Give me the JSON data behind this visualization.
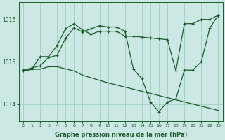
{
  "xlabel": "Graphe pression niveau de la mer (hPa)",
  "background_color": "#cce8e4",
  "grid_color": "#99ccbb",
  "line_color": "#1a5c2a",
  "xlim": [
    -0.5,
    23.5
  ],
  "ylim": [
    1013.6,
    1016.4
  ],
  "yticks": [
    1014,
    1015,
    1016
  ],
  "xticks": [
    0,
    1,
    2,
    3,
    4,
    5,
    6,
    7,
    8,
    9,
    10,
    11,
    12,
    13,
    14,
    15,
    16,
    17,
    18,
    19,
    20,
    21,
    22,
    23
  ],
  "line1_x": [
    0,
    1,
    2,
    3,
    4,
    5,
    6,
    7,
    8,
    9,
    10,
    11,
    12,
    13,
    14,
    15,
    16,
    17,
    18,
    19,
    20,
    21,
    22,
    23
  ],
  "line1_y": [
    1014.8,
    1014.85,
    1014.9,
    1015.1,
    1015.15,
    1015.55,
    1015.8,
    1015.7,
    1015.78,
    1015.85,
    1015.82,
    1015.82,
    1015.72,
    1014.82,
    1014.6,
    1014.05,
    1013.82,
    1014.05,
    1014.12,
    1014.8,
    1014.8,
    1015.0,
    1015.8,
    1016.1
  ],
  "line2_x": [
    0,
    1,
    2,
    3,
    4,
    5,
    6,
    7,
    8,
    9,
    10,
    11,
    12,
    13,
    14,
    15,
    16,
    17,
    18,
    19,
    20,
    21,
    22,
    23
  ],
  "line2_y": [
    1014.78,
    1014.82,
    1015.12,
    1015.12,
    1015.38,
    1015.78,
    1015.9,
    1015.75,
    1015.65,
    1015.72,
    1015.72,
    1015.72,
    1015.6,
    1015.6,
    1015.58,
    1015.56,
    1015.54,
    1015.52,
    1014.78,
    1015.9,
    1015.9,
    1016.0,
    1016.0,
    1016.1
  ],
  "line3_x": [
    0,
    1,
    2,
    3,
    4,
    5,
    6,
    7,
    8,
    9,
    10,
    11,
    12,
    13,
    14,
    15,
    16,
    17,
    18,
    19,
    20,
    21,
    22,
    23
  ],
  "line3_y": [
    1014.78,
    1014.82,
    1014.82,
    1014.88,
    1014.88,
    1014.83,
    1014.78,
    1014.68,
    1014.62,
    1014.56,
    1014.5,
    1014.45,
    1014.4,
    1014.35,
    1014.3,
    1014.25,
    1014.2,
    1014.15,
    1014.1,
    1014.05,
    1014.0,
    1013.95,
    1013.9,
    1013.85
  ]
}
